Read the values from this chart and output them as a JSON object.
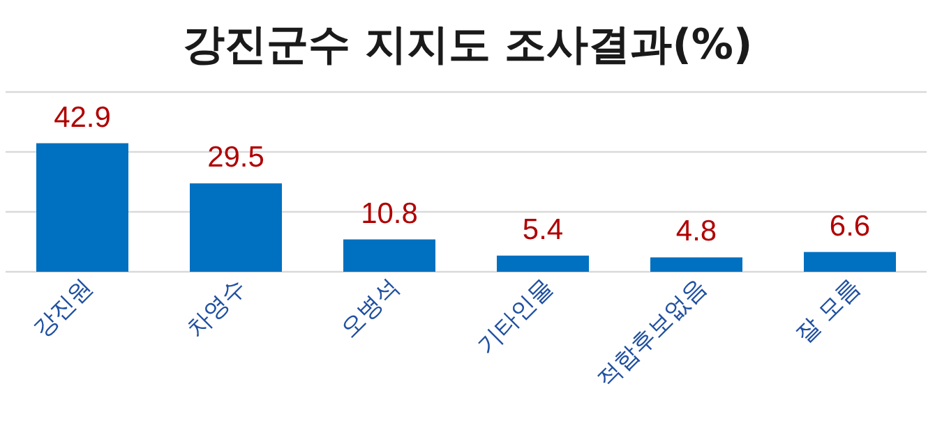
{
  "chart_data": {
    "type": "bar",
    "title": "강진군수 지지도 조사결과(%)",
    "categories": [
      "강진원",
      "차영수",
      "오병석",
      "기타인물",
      "적합후보없음",
      "잘 모름"
    ],
    "series": [
      {
        "color": "#0070c0",
        "values": [
          42.9,
          29.5,
          10.8,
          5.4,
          4.8,
          6.6
        ]
      }
    ],
    "ylim": [
      0,
      60
    ],
    "yticks": [
      {
        "value": 0,
        "label": null
      },
      {
        "value": 20,
        "label": null
      },
      {
        "value": 40,
        "label": null
      },
      {
        "value": 60,
        "label": null
      }
    ],
    "grid": "y",
    "data_labels": true
  }
}
